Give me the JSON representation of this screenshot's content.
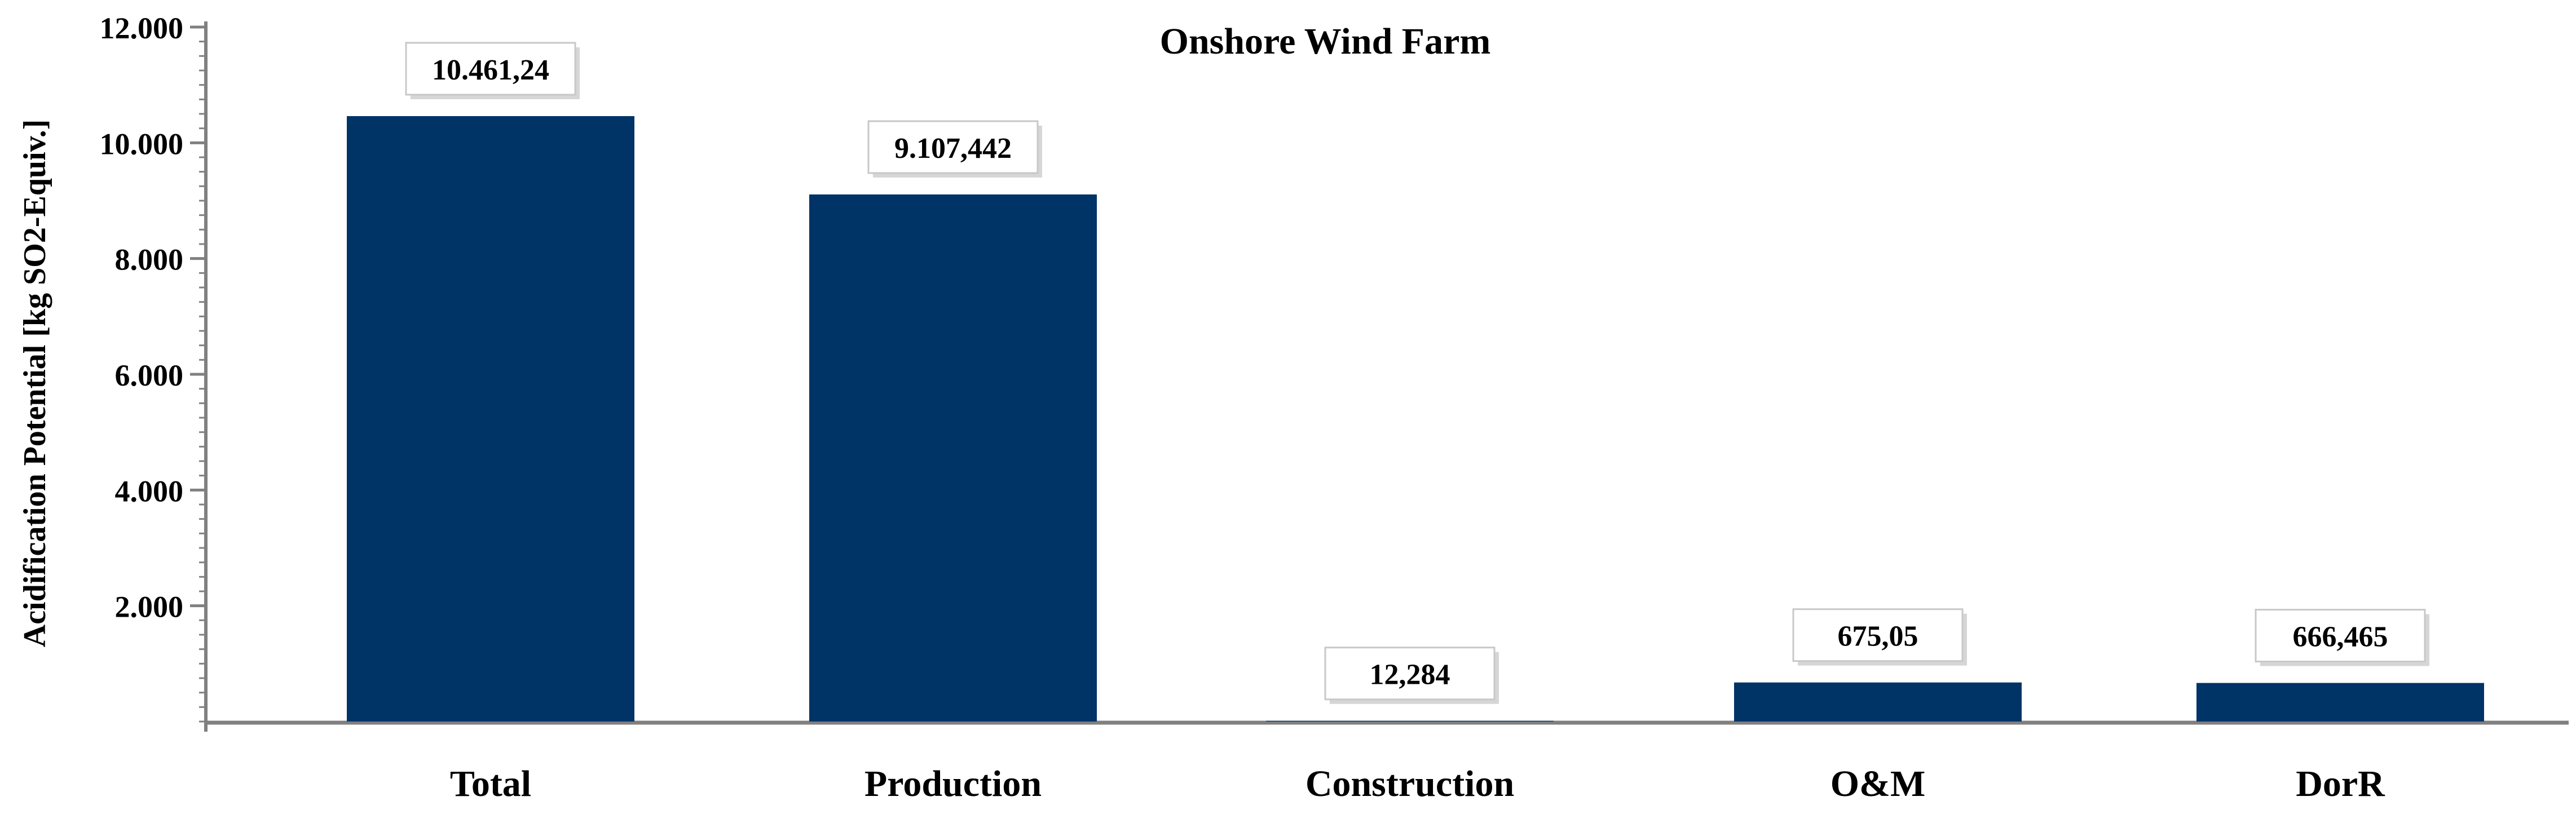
{
  "chart_data": {
    "type": "bar",
    "title": "Onshore Wind Farm",
    "xlabel": "",
    "ylabel": "Acidification Potential [kg SO2-Equiv.]",
    "categories": [
      "Total",
      "Production",
      "Construction",
      "O&M",
      "DorR"
    ],
    "values": [
      10461.24,
      9107.442,
      12.284,
      675.05,
      666.465
    ],
    "data_labels": [
      "10.461,24",
      "9.107,442",
      "12,284",
      "675,05",
      "666,465"
    ],
    "ylim": [
      0,
      12000
    ],
    "yticks": [
      2000,
      4000,
      6000,
      8000,
      10000,
      12000
    ],
    "ytick_labels": [
      "2.000",
      "4.000",
      "6.000",
      "8.000",
      "10.000",
      "12.000"
    ],
    "grid": false,
    "legend": "none",
    "colors": {
      "bar": "#003366",
      "axis": "#808080",
      "label_box_border": "#c8c8c8",
      "label_box_shadow": "#b4b4b4"
    }
  }
}
